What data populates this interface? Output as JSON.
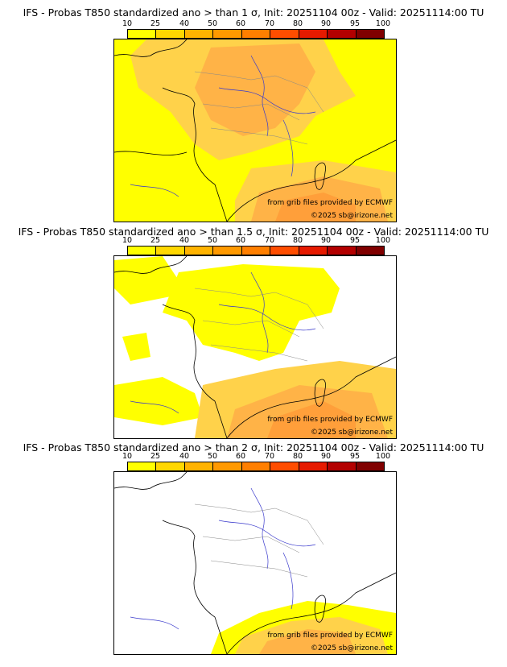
{
  "colorbar": {
    "ticks": [
      "10",
      "25",
      "40",
      "50",
      "60",
      "70",
      "80",
      "90",
      "95",
      "100"
    ],
    "colors": [
      "#ffff00",
      "#ffd700",
      "#ffb300",
      "#ff9900",
      "#ff7f00",
      "#ff4d00",
      "#e61a00",
      "#b30000",
      "#800000"
    ]
  },
  "colors": {
    "land_low": "#ffff00",
    "shade_25": "#ffd24a",
    "shade_40": "#ffb347",
    "shade_50": "#ff9f3a",
    "rivers": "#3a3acc",
    "borders": "#888888",
    "coast": "#000000"
  },
  "panels": [
    {
      "title": "IFS - Probas T850  standardized ano > than 1 σ, Init: 20251104 00z - Valid: 20251114:00 TU",
      "threshold_sigma": "1",
      "credit_source": "from grib files provided by ECMWF",
      "credit_copyright": "©2025 sb@irizone.net"
    },
    {
      "title": "IFS - Probas T850  standardized ano > than 1.5 σ, Init: 20251104 00z - Valid: 20251114:00 TU",
      "threshold_sigma": "1.5",
      "credit_source": "from grib files provided by ECMWF",
      "credit_copyright": "©2025 sb@irizone.net"
    },
    {
      "title": "IFS - Probas T850  standardized ano > than 2 σ, Init: 20251104 00z - Valid: 20251114:00 TU",
      "threshold_sigma": "2",
      "credit_source": "from grib files provided by ECMWF",
      "credit_copyright": "©2025 sb@irizone.net"
    }
  ]
}
